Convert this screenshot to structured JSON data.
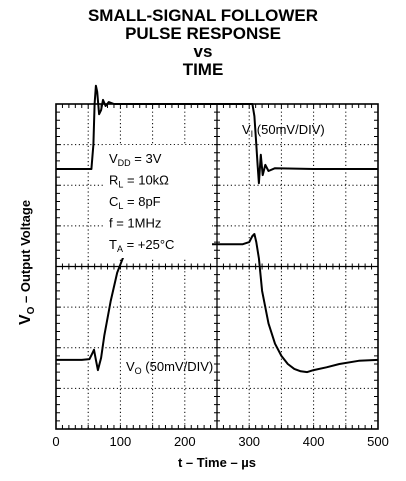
{
  "chart_data": {
    "type": "line",
    "title_lines": [
      "SMALL-SIGNAL FOLLOWER",
      "PULSE RESPONSE",
      "vs",
      "TIME"
    ],
    "xlabel": "t – Time – µs",
    "ylabel": "V",
    "ylabel_sub": "O",
    "ylabel_rest": " – Output Voltage",
    "xlim": [
      0,
      500
    ],
    "x_ticks": [
      "0",
      "100",
      "200",
      "300",
      "400",
      "500"
    ],
    "grid": true,
    "divisions": {
      "x": 10,
      "y": 8
    },
    "annotations": {
      "vi_main": "V",
      "vi_sub": "I",
      "vi_scale": " (50mV/DIV)",
      "vo_main": "V",
      "vo_sub": "O",
      "vo_scale": " (50mV/DIV)",
      "conditions": [
        {
          "main": "V",
          "sub": "DD",
          "rest": " = 3V"
        },
        {
          "main": "R",
          "sub": "L",
          "rest": " = 10kΩ"
        },
        {
          "main": "C",
          "sub": "L",
          "rest": " = 8pF"
        },
        {
          "main": "f = 1MHz",
          "sub": "",
          "rest": ""
        },
        {
          "main": "T",
          "sub": "A",
          "rest": " = +25°C"
        }
      ]
    },
    "series": [
      {
        "key": "vi",
        "x": [
          0,
          55,
          58,
          60,
          62,
          64,
          67,
          70,
          73,
          77,
          82,
          90,
          150,
          250,
          305,
          308,
          311,
          313,
          315,
          318,
          321,
          325,
          330,
          340,
          400,
          500
        ],
        "y": [
          6.4,
          6.4,
          7.0,
          8.0,
          8.45,
          8.3,
          7.75,
          7.85,
          8.1,
          7.95,
          8.05,
          8.0,
          8.0,
          8.0,
          8.0,
          7.7,
          7.0,
          6.5,
          6.05,
          6.75,
          6.25,
          6.5,
          6.35,
          6.42,
          6.4,
          6.4
        ]
      },
      {
        "key": "vo",
        "x": [
          0,
          40,
          52,
          56,
          59,
          62,
          65,
          70,
          75,
          85,
          95,
          105,
          115,
          125,
          135,
          145,
          160,
          200,
          250,
          290,
          300,
          305,
          308,
          311,
          315,
          320,
          330,
          340,
          350,
          360,
          370,
          380,
          390,
          400,
          420,
          440,
          470,
          500
        ],
        "y": [
          1.7,
          1.7,
          1.72,
          1.85,
          1.95,
          1.7,
          1.45,
          1.75,
          2.3,
          3.15,
          3.85,
          4.25,
          4.45,
          4.55,
          4.6,
          4.6,
          4.56,
          4.55,
          4.55,
          4.55,
          4.6,
          4.75,
          4.8,
          4.6,
          4.2,
          3.4,
          2.6,
          2.1,
          1.8,
          1.6,
          1.48,
          1.42,
          1.4,
          1.45,
          1.52,
          1.6,
          1.68,
          1.7
        ]
      }
    ]
  },
  "colors": {
    "line": "#000000",
    "grid": "#000000",
    "text": "#000000"
  }
}
